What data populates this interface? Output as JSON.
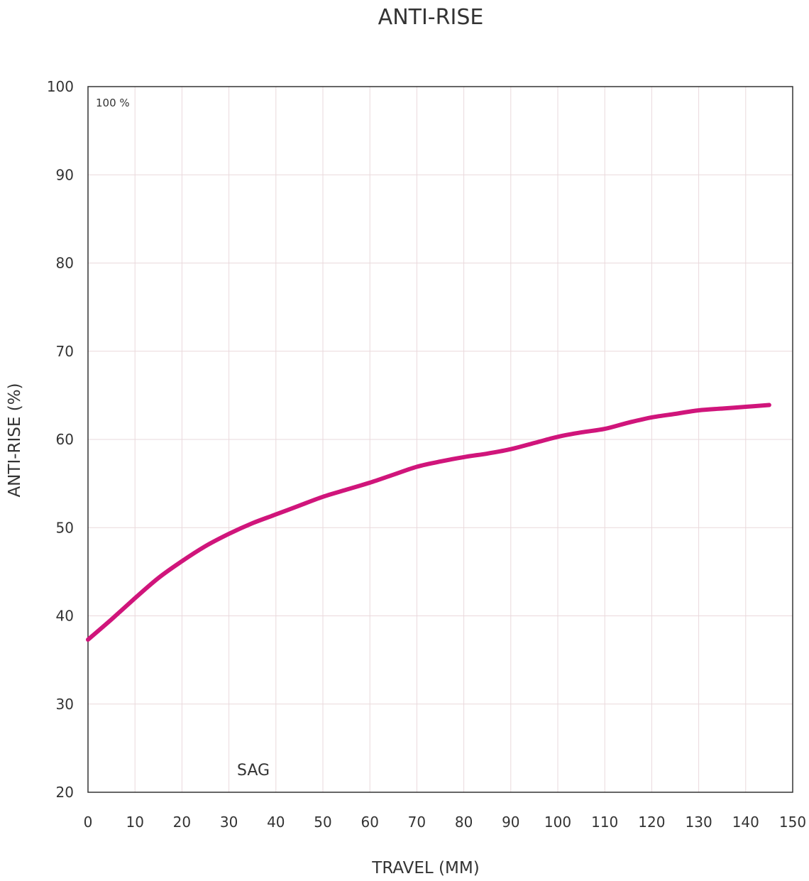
{
  "chart_data": {
    "type": "line",
    "title": "ANTI-RISE",
    "xlabel": "TRAVEL (MM)",
    "ylabel": "ANTI-RISE (%)",
    "xlim": [
      0,
      150
    ],
    "ylim": [
      20,
      100
    ],
    "xticks": [
      "0",
      "10",
      "20",
      "30",
      "40",
      "50",
      "60",
      "70",
      "80",
      "90",
      "100",
      "110",
      "120",
      "130",
      "140",
      "150"
    ],
    "yticks": [
      "20",
      "30",
      "40",
      "50",
      "60",
      "70",
      "80",
      "90",
      "100"
    ],
    "grid": true,
    "annotations": {
      "top_left": "100 %",
      "sag": "SAG"
    },
    "series": [
      {
        "color": "#d0157b",
        "x": [
          0,
          5,
          10,
          15,
          20,
          25,
          30,
          35,
          40,
          45,
          50,
          55,
          60,
          65,
          70,
          75,
          80,
          85,
          90,
          95,
          100,
          105,
          110,
          115,
          120,
          125,
          130,
          135,
          140,
          145
        ],
        "y": [
          37.3,
          39.6,
          42.0,
          44.3,
          46.2,
          47.9,
          49.3,
          50.5,
          51.5,
          52.5,
          53.5,
          54.3,
          55.1,
          56.0,
          56.9,
          57.5,
          58.0,
          58.4,
          58.9,
          59.6,
          60.3,
          60.8,
          61.2,
          61.9,
          62.5,
          62.9,
          63.3,
          63.5,
          63.7,
          63.9
        ]
      }
    ]
  }
}
